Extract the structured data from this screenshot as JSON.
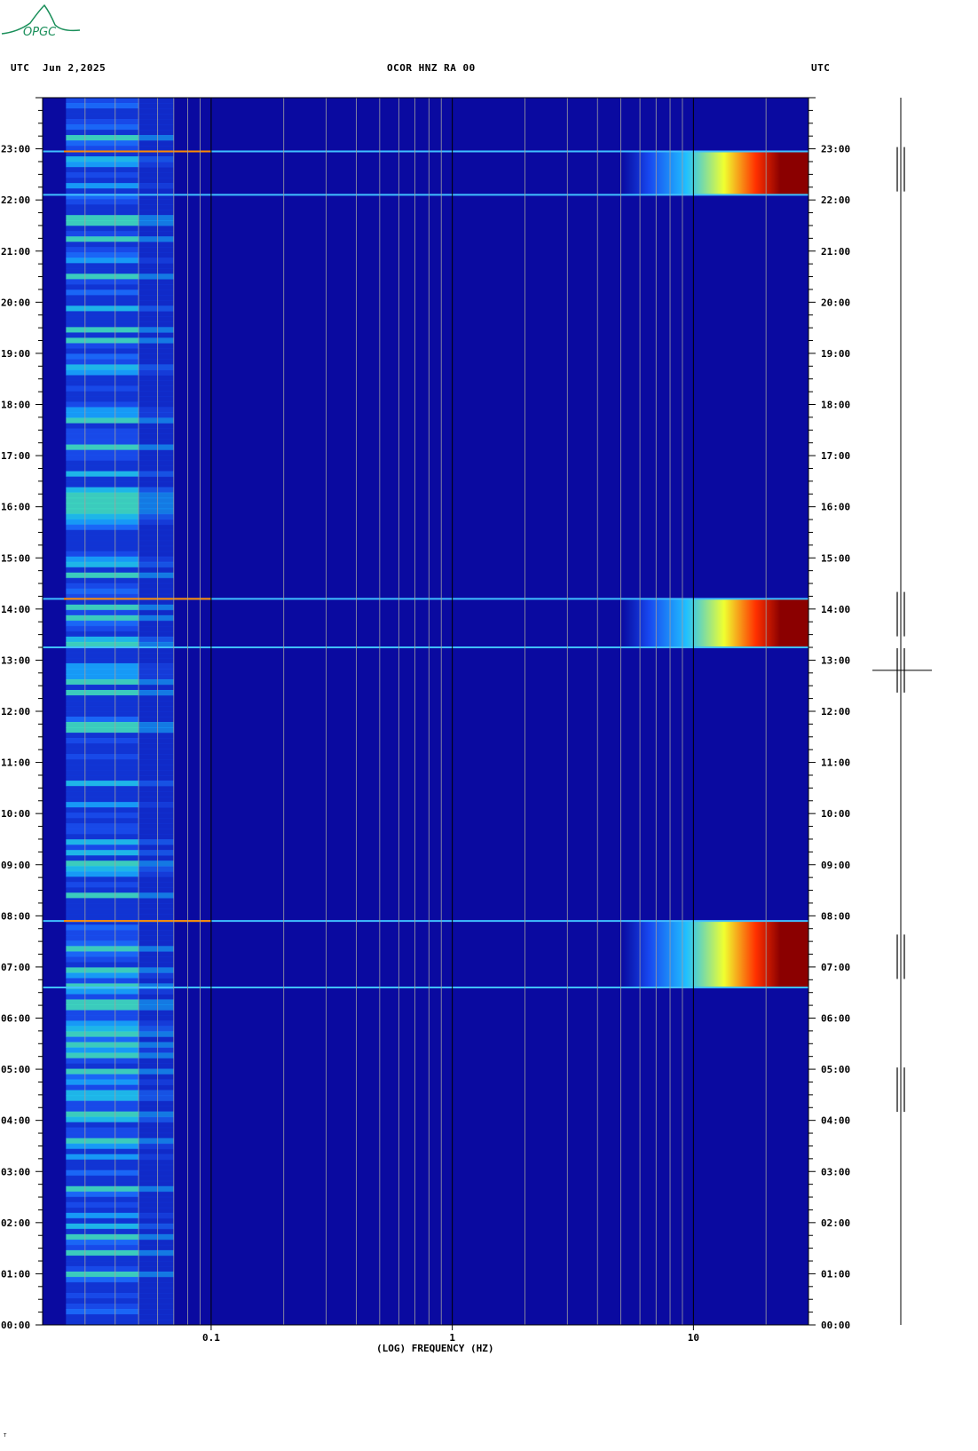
{
  "header": {
    "logo_text": "OPGC",
    "left_label": "UTC",
    "date": "Jun 2,2025",
    "station": "OCOR HNZ RA 00",
    "right_label": "UTC"
  },
  "footer": {
    "mark": "ᵀ"
  },
  "colors": {
    "background": "#0a0aa0",
    "low": "#1040e0",
    "mid": "#20c0ff",
    "bright": "#f0ff30",
    "hot": "#ff3000",
    "saturated": "#8b0000",
    "logo": "#1a8f5a"
  },
  "chart_data": {
    "type": "heatmap",
    "title": "OCOR HNZ RA 00",
    "xlabel": "(LOG) FREQUENCY (HZ)",
    "ylabel": "UTC",
    "x_scale": "log",
    "xlim": [
      0.02,
      30
    ],
    "ylim_hours": [
      0,
      24
    ],
    "x_ticks": [
      {
        "value": 0.1,
        "label": "0.1"
      },
      {
        "value": 1,
        "label": "1"
      },
      {
        "value": 10,
        "label": "10"
      }
    ],
    "y_ticks": [
      "00:00",
      "01:00",
      "02:00",
      "03:00",
      "04:00",
      "05:00",
      "06:00",
      "07:00",
      "08:00",
      "09:00",
      "10:00",
      "11:00",
      "12:00",
      "13:00",
      "14:00",
      "15:00",
      "16:00",
      "17:00",
      "18:00",
      "19:00",
      "20:00",
      "21:00",
      "22:00",
      "23:00"
    ],
    "grid": "vertical log-frequency lines",
    "strong_events": [
      {
        "start_hour": 6.6,
        "end_hour": 7.9,
        "min_freq_hz": 5
      },
      {
        "start_hour": 13.25,
        "end_hour": 14.2,
        "min_freq_hz": 5
      },
      {
        "start_hour": 22.1,
        "end_hour": 22.95,
        "min_freq_hz": 5
      }
    ],
    "trace_events_hours": [
      4.6,
      7.2,
      12.8,
      13.9,
      22.6
    ]
  }
}
